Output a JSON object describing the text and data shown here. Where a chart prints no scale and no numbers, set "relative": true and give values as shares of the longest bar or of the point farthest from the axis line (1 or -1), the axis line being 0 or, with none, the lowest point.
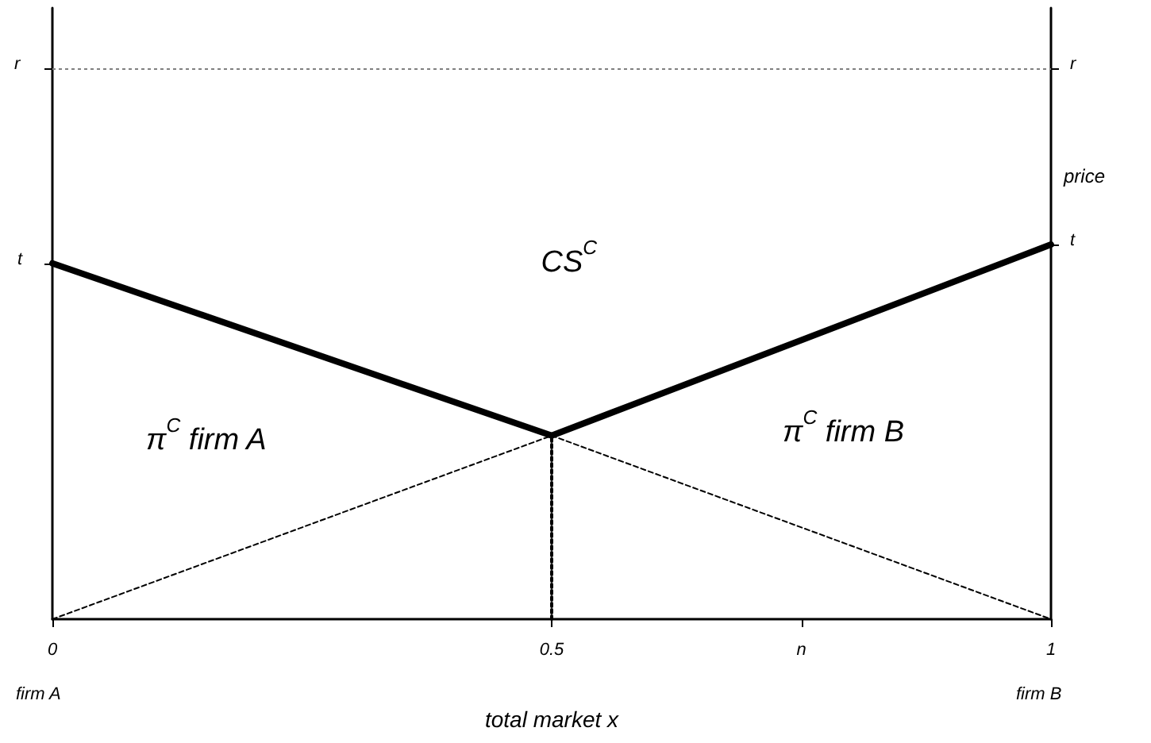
{
  "chart_data": {
    "type": "line",
    "relative": true,
    "xlabel": "total market x",
    "ylabel": "price",
    "xlim": [
      0,
      1
    ],
    "xticks": [
      0,
      0.5,
      {
        "value": 0.75,
        "label": "n"
      },
      1
    ],
    "series": [
      {
        "color": "#000000",
        "line_style": "solid",
        "x": [
          0,
          0.5,
          1
        ],
        "values": [
          0.95,
          0.49,
          1
        ]
      },
      {
        "color": "#000000",
        "line_style": "dashed",
        "x": [
          0,
          0.5,
          1
        ],
        "values": [
          0,
          0.49,
          0
        ]
      },
      {
        "color": "#000000",
        "line_style": "dotted",
        "x": [
          0.5,
          0.5
        ],
        "values": [
          0,
          0.49
        ]
      }
    ],
    "ref_lines": [
      {
        "axis": "y",
        "value": 1.47,
        "label": "r",
        "color": "#808080",
        "line_style": "dotted"
      }
    ],
    "annotations": [
      {
        "text": "t",
        "x": 0,
        "y": 0.95
      },
      {
        "text": "t",
        "x": 1,
        "y": 1
      },
      "CS$^{C}$",
      "π$^{C}$ firm A",
      "π$^{C}$ firm B",
      "firm A",
      "firm B"
    ],
    "grid": false,
    "marker": "none"
  }
}
